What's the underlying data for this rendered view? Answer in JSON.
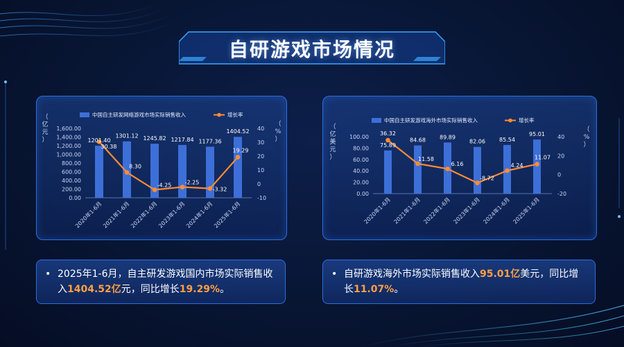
{
  "page": {
    "title": "自研游戏市场情况"
  },
  "chart_data": [
    {
      "type": "bar",
      "categories": [
        "2020年1-6月",
        "2021年1-6月",
        "2022年1-6月",
        "2023年1-6月",
        "2024年1-6月",
        "2025年1-6月"
      ],
      "series": [
        {
          "name": "中国自主研发网络游戏市场实际销售收入",
          "type": "bar",
          "axis": "left",
          "values": [
            1201.4,
            1301.12,
            1245.82,
            1217.84,
            1177.36,
            1404.52
          ],
          "labels": [
            "1201.40",
            "1301.12",
            "1245.82",
            "1217.84",
            "1177.36",
            "1404.52"
          ]
        },
        {
          "name": "增长率",
          "type": "line",
          "axis": "right",
          "values": [
            30.38,
            8.3,
            -4.25,
            -2.25,
            -3.32,
            19.29
          ],
          "labels": [
            "30.38",
            "8.30",
            "-4.25",
            "-2.25",
            "-3.32",
            "19.29"
          ]
        }
      ],
      "ylabel": "（亿元）",
      "y2label": "（%）",
      "ylim": [
        0,
        1600
      ],
      "y2lim": [
        -10,
        40
      ],
      "yticks": [
        "0.00",
        "200.00",
        "400.00",
        "600.00",
        "800.00",
        "1,000.00",
        "1,200.00",
        "1,400.00",
        "1,600.00"
      ],
      "y2ticks": [
        "-10",
        "0",
        "10",
        "20",
        "30",
        "40"
      ],
      "legend_position": "top"
    },
    {
      "type": "bar",
      "categories": [
        "2020年1-6月",
        "2021年1-6月",
        "2022年1-6月",
        "2023年1-6月",
        "2024年1-6月",
        "2025年1-6月"
      ],
      "series": [
        {
          "name": "中国自主研发游戏海外市场实际销售收入",
          "type": "bar",
          "axis": "left",
          "values": [
            75.89,
            84.68,
            89.89,
            82.06,
            85.54,
            95.01
          ],
          "labels": [
            "75.89",
            "84.68",
            "89.89",
            "82.06",
            "85.54",
            "95.01"
          ]
        },
        {
          "name": "增长率",
          "type": "line",
          "axis": "right",
          "values": [
            36.32,
            11.58,
            6.16,
            -8.72,
            4.24,
            11.07
          ],
          "labels": [
            "36.32",
            "11.58",
            "6.16",
            "-8.72",
            "4.24",
            "11.07"
          ]
        }
      ],
      "ylabel": "（亿美元）",
      "y2label": "（%）",
      "ylim": [
        0,
        100
      ],
      "y2lim": [
        -20,
        40
      ],
      "yticks": [
        "0.00",
        "20.00",
        "40.00",
        "60.00",
        "80.00",
        "100.00"
      ],
      "y2ticks": [
        "-20",
        "0",
        "20",
        "40"
      ],
      "legend_position": "top"
    }
  ],
  "summaries": {
    "left": {
      "bullet": "•",
      "t1": "2025年1-6月，自主研发游戏国内市场实际销售收入",
      "h1": "1404.52亿",
      "t2": "元，同比增长",
      "h2": "19.29%",
      "t3": "。"
    },
    "right": {
      "bullet": "•",
      "t1": "自研游戏海外市场实际销售收入",
      "h1": "95.01亿",
      "t2": "美元，同比增长",
      "h2": "11.07%",
      "t3": "。"
    }
  },
  "colors": {
    "bar": "#3d6fd8",
    "line": "#ff8c33",
    "axis_text": "#c9d6f5",
    "highlight": "#ff9f43"
  }
}
